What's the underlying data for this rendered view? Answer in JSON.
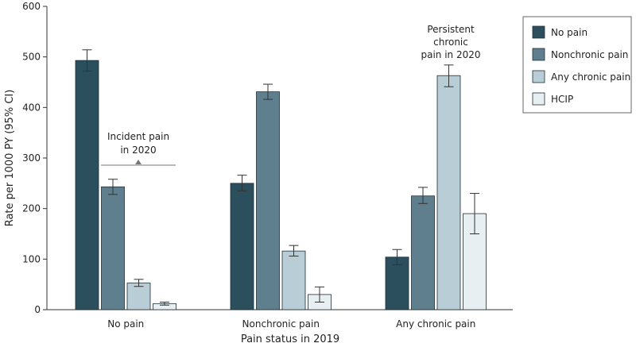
{
  "chart_data": {
    "type": "bar",
    "title": "",
    "xlabel": "Pain status in 2019",
    "ylabel": "Rate per 1000 PY (95% CI)",
    "ylim": [
      0,
      600
    ],
    "yticks": [
      0,
      100,
      200,
      300,
      400,
      500,
      600
    ],
    "categories": [
      "No pain",
      "Nonchronic pain",
      "Any chronic pain"
    ],
    "grid": false,
    "legend_position": "right",
    "series": [
      {
        "name": "No pain",
        "color": "#2c4f5e",
        "values": [
          493,
          250,
          104
        ],
        "ci_low": [
          472,
          235,
          89
        ],
        "ci_high": [
          514,
          266,
          119
        ]
      },
      {
        "name": "Nonchronic pain",
        "color": "#5f7f8e",
        "values": [
          243,
          431,
          225
        ],
        "ci_low": [
          228,
          416,
          210
        ],
        "ci_high": [
          258,
          446,
          242
        ]
      },
      {
        "name": "Any chronic pain",
        "color": "#b9cdd6",
        "values": [
          53,
          116,
          463
        ],
        "ci_low": [
          46,
          106,
          441
        ],
        "ci_high": [
          60,
          127,
          484
        ]
      },
      {
        "name": "HCIP",
        "color": "#e8eff2",
        "values": [
          12,
          30,
          190
        ],
        "ci_low": [
          9,
          15,
          150
        ],
        "ci_high": [
          15,
          45,
          230
        ]
      }
    ],
    "annotations": [
      {
        "lines": [
          "Incident pain",
          "in 2020"
        ],
        "category": 0
      },
      {
        "lines": [
          "Persistent",
          "chronic",
          "pain in 2020"
        ],
        "category": 2
      }
    ]
  }
}
